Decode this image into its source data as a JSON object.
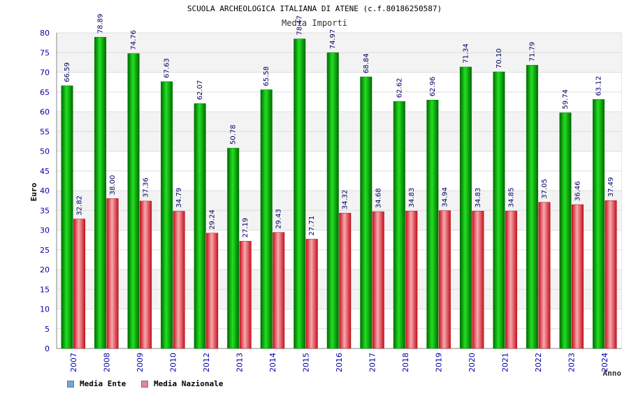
{
  "chart_data": {
    "type": "bar",
    "title": "SCUOLA ARCHEOLOGICA ITALIANA DI ATENE (c.f.80186250587)",
    "subtitle": "Media Importi",
    "xlabel": "Anno",
    "ylabel": "Euro",
    "ylim": [
      0,
      80
    ],
    "yticks": [
      "0",
      "5",
      "10",
      "15",
      "20",
      "25",
      "30",
      "35",
      "40",
      "45",
      "50",
      "55",
      "60",
      "65",
      "70",
      "75",
      "80"
    ],
    "categories": [
      "2007",
      "2008",
      "2009",
      "2010",
      "2012",
      "2013",
      "2014",
      "2015",
      "2016",
      "2017",
      "2018",
      "2019",
      "2020",
      "2021",
      "2022",
      "2023",
      "2024"
    ],
    "series": [
      {
        "name": "Media Ente",
        "color": "#00aa00",
        "values": [
          66.59,
          78.89,
          74.76,
          67.63,
          62.07,
          50.78,
          65.58,
          78.47,
          74.97,
          68.84,
          62.62,
          62.96,
          71.34,
          70.1,
          71.79,
          59.74,
          63.12
        ],
        "labels": [
          "66.59",
          "78.89",
          "74.76",
          "67.63",
          "62.07",
          "50.78",
          "65.58",
          "78.47",
          "74.97",
          "68.84",
          "62.62",
          "62.96",
          "71.34",
          "70.10",
          "71.79",
          "59.74",
          "63.12"
        ]
      },
      {
        "name": "Media Nazionale",
        "color": "#e8202e",
        "values": [
          32.82,
          38.0,
          37.36,
          34.79,
          29.24,
          27.19,
          29.43,
          27.71,
          34.32,
          34.68,
          34.83,
          34.94,
          34.83,
          34.85,
          37.05,
          36.46,
          37.49
        ],
        "labels": [
          "32.82",
          "38.00",
          "37.36",
          "34.79",
          "29.24",
          "27.19",
          "29.43",
          "27.71",
          "34.32",
          "34.68",
          "34.83",
          "34.94",
          "34.83",
          "34.85",
          "37.05",
          "36.46",
          "37.49"
        ]
      }
    ],
    "legend": [
      {
        "label": "Media Ente",
        "color": "#6fa8dc"
      },
      {
        "label": "Media Nazionale",
        "color": "#e87fb0"
      }
    ],
    "grid": true,
    "legend_position": "bottom-left"
  }
}
